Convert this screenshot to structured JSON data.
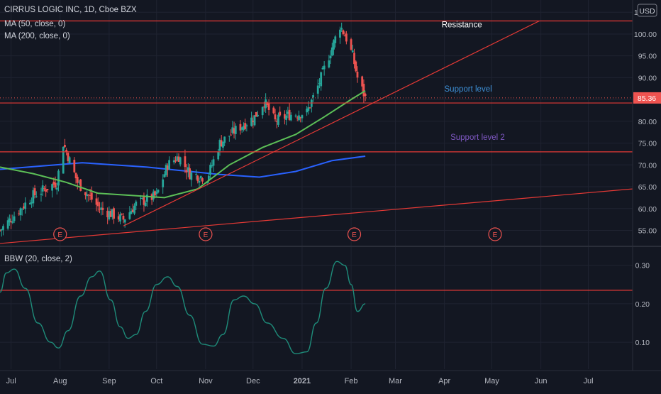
{
  "header": {
    "title": "CIRRUS LOGIC INC, 1D, Cboe BZX",
    "ma50_label": "MA (50, close, 0)",
    "ma200_label": "MA (200, close, 0)",
    "currency": "USD"
  },
  "colors": {
    "background": "#131722",
    "grid": "#1f2331",
    "separator": "#2a2e39",
    "up": "#26a69a",
    "down": "#ef5350",
    "ma50": "#5cbf57",
    "ma200": "#2962ff",
    "drawing": "#e53935",
    "bbw": "#1e8c7a",
    "support1": "#3d8fd6",
    "support2": "#7e57c2",
    "resistance": "#ffffff",
    "axis_text": "#b2b5be"
  },
  "chart_data": {
    "type": "candlestick",
    "symbol": "CIRRUS LOGIC INC",
    "interval": "1D",
    "exchange": "Cboe BZX",
    "x_axis": {
      "tick_labels": [
        "Jul",
        "Aug",
        "Sep",
        "Oct",
        "Nov",
        "Dec",
        "2021",
        "Feb",
        "Mar",
        "Apr",
        "May",
        "Jun",
        "Jul"
      ],
      "range": [
        "2020-06-24",
        "2021-07-29"
      ]
    },
    "price_axis": {
      "ticks": [
        55,
        60,
        65,
        70,
        75,
        80,
        85,
        90,
        95,
        100,
        105
      ],
      "tick_labels": [
        "55.00",
        "60.00",
        "65.00",
        "70.00",
        "75.00",
        "80.00",
        "85.00",
        "90.00",
        "95.00",
        "100.00",
        "105.00"
      ],
      "range": [
        51.5,
        106.5
      ],
      "last_price": "85.36"
    },
    "price_anchors": [
      {
        "date": "2020-06-24",
        "close": 55
      },
      {
        "date": "2020-07-15",
        "close": 63
      },
      {
        "date": "2020-07-30",
        "close": 66
      },
      {
        "date": "2020-08-03",
        "close": 75
      },
      {
        "date": "2020-08-12",
        "close": 66
      },
      {
        "date": "2020-08-26",
        "close": 60
      },
      {
        "date": "2020-09-10",
        "close": 57.5
      },
      {
        "date": "2020-09-18",
        "close": 61
      },
      {
        "date": "2020-10-01",
        "close": 63
      },
      {
        "date": "2020-10-08",
        "close": 70
      },
      {
        "date": "2020-10-15",
        "close": 72
      },
      {
        "date": "2020-10-22",
        "close": 68
      },
      {
        "date": "2020-11-02",
        "close": 67
      },
      {
        "date": "2020-11-10",
        "close": 75
      },
      {
        "date": "2020-11-20",
        "close": 78
      },
      {
        "date": "2020-12-02",
        "close": 81
      },
      {
        "date": "2020-12-08",
        "close": 84.5
      },
      {
        "date": "2020-12-15",
        "close": 80
      },
      {
        "date": "2020-12-24",
        "close": 81.5
      },
      {
        "date": "2021-01-04",
        "close": 82
      },
      {
        "date": "2021-01-11",
        "close": 88
      },
      {
        "date": "2021-01-19",
        "close": 96
      },
      {
        "date": "2021-01-25",
        "close": 102
      },
      {
        "date": "2021-01-29",
        "close": 99
      },
      {
        "date": "2021-02-02",
        "close": 95
      },
      {
        "date": "2021-02-05",
        "close": 90
      },
      {
        "date": "2021-02-10",
        "close": 85.36
      }
    ],
    "ma50": [
      {
        "date": "2020-06-24",
        "value": 69.5
      },
      {
        "date": "2020-07-15",
        "value": 68
      },
      {
        "date": "2020-08-05",
        "value": 66
      },
      {
        "date": "2020-08-25",
        "value": 63.5
      },
      {
        "date": "2020-09-15",
        "value": 63
      },
      {
        "date": "2020-10-06",
        "value": 62.5
      },
      {
        "date": "2020-10-27",
        "value": 64.5
      },
      {
        "date": "2020-11-16",
        "value": 70
      },
      {
        "date": "2020-12-07",
        "value": 74
      },
      {
        "date": "2020-12-28",
        "value": 77
      },
      {
        "date": "2021-01-15",
        "value": 81
      },
      {
        "date": "2021-02-01",
        "value": 85
      },
      {
        "date": "2021-02-10",
        "value": 87
      }
    ],
    "ma200": [
      {
        "date": "2020-06-24",
        "value": 69
      },
      {
        "date": "2020-08-15",
        "value": 70.5
      },
      {
        "date": "2020-09-25",
        "value": 69.5
      },
      {
        "date": "2020-11-10",
        "value": 67.8
      },
      {
        "date": "2020-12-05",
        "value": 67.2
      },
      {
        "date": "2020-12-28",
        "value": 68.5
      },
      {
        "date": "2021-01-20",
        "value": 71
      },
      {
        "date": "2021-02-10",
        "value": 72
      }
    ],
    "drawings": [
      {
        "type": "horizontal",
        "price": 103,
        "label": "Resistance"
      },
      {
        "type": "horizontal",
        "price": 84.2,
        "label": "Support level"
      },
      {
        "type": "horizontal",
        "price": 73,
        "label": "Support level 2"
      },
      {
        "type": "trendline",
        "from": {
          "date": "2020-09-10",
          "price": 56
        },
        "to": {
          "date": "2021-05-31",
          "price": 103
        }
      },
      {
        "type": "trendline",
        "from": {
          "date": "2020-06-24",
          "price": 52
        },
        "to": {
          "date": "2021-07-29",
          "price": 64.5
        }
      }
    ],
    "earnings_markers": {
      "label": "E",
      "dates": [
        "2020-08-01",
        "2020-11-01",
        "2021-02-03",
        "2021-05-03"
      ]
    },
    "bbw_indicator": {
      "label": "BBW (20, close, 2)",
      "axis_ticks": [
        0.1,
        0.2,
        0.3
      ],
      "axis_tick_labels": [
        "0.10",
        "0.20",
        "0.30"
      ],
      "range": [
        0.03,
        0.34
      ],
      "threshold_line": 0.235,
      "points": [
        {
          "date": "2020-06-24",
          "value": 0.23
        },
        {
          "date": "2020-06-28",
          "value": 0.28
        },
        {
          "date": "2020-07-03",
          "value": 0.29
        },
        {
          "date": "2020-07-10",
          "value": 0.24
        },
        {
          "date": "2020-07-18",
          "value": 0.15
        },
        {
          "date": "2020-07-26",
          "value": 0.1
        },
        {
          "date": "2020-07-31",
          "value": 0.085
        },
        {
          "date": "2020-08-06",
          "value": 0.13
        },
        {
          "date": "2020-08-14",
          "value": 0.22
        },
        {
          "date": "2020-08-21",
          "value": 0.27
        },
        {
          "date": "2020-08-26",
          "value": 0.285
        },
        {
          "date": "2020-09-02",
          "value": 0.21
        },
        {
          "date": "2020-09-08",
          "value": 0.14
        },
        {
          "date": "2020-09-13",
          "value": 0.11
        },
        {
          "date": "2020-09-18",
          "value": 0.12
        },
        {
          "date": "2020-09-24",
          "value": 0.18
        },
        {
          "date": "2020-10-01",
          "value": 0.25
        },
        {
          "date": "2020-10-08",
          "value": 0.27
        },
        {
          "date": "2020-10-14",
          "value": 0.245
        },
        {
          "date": "2020-10-22",
          "value": 0.17
        },
        {
          "date": "2020-10-30",
          "value": 0.095
        },
        {
          "date": "2020-11-06",
          "value": 0.09
        },
        {
          "date": "2020-11-12",
          "value": 0.12
        },
        {
          "date": "2020-11-19",
          "value": 0.21
        },
        {
          "date": "2020-11-25",
          "value": 0.22
        },
        {
          "date": "2020-12-02",
          "value": 0.2
        },
        {
          "date": "2020-12-10",
          "value": 0.15
        },
        {
          "date": "2020-12-20",
          "value": 0.11
        },
        {
          "date": "2020-12-28",
          "value": 0.07
        },
        {
          "date": "2021-01-04",
          "value": 0.075
        },
        {
          "date": "2021-01-10",
          "value": 0.15
        },
        {
          "date": "2021-01-16",
          "value": 0.24
        },
        {
          "date": "2021-01-23",
          "value": 0.31
        },
        {
          "date": "2021-01-28",
          "value": 0.3
        },
        {
          "date": "2021-02-01",
          "value": 0.25
        },
        {
          "date": "2021-02-05",
          "value": 0.18
        },
        {
          "date": "2021-02-10",
          "value": 0.2
        }
      ]
    }
  }
}
